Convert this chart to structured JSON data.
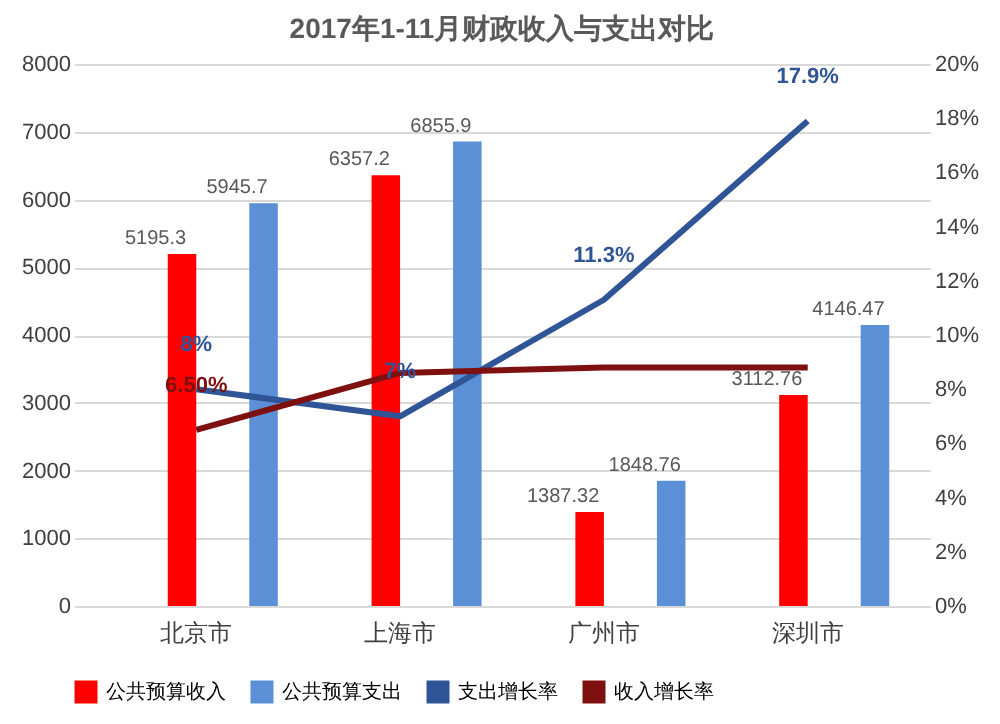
{
  "chart_data": {
    "type": "bar",
    "title": "2017年1-11月财政收入与支出对比",
    "categories": [
      "北京市",
      "上海市",
      "广州市",
      "深圳市"
    ],
    "series": [
      {
        "name": "公共预算收入",
        "color": "#ff0000",
        "values": [
          5195.3,
          6357.2,
          1387.32,
          3112.76
        ],
        "value_labels": [
          "5195.3",
          "6357.2",
          "1387.32",
          "3112.76"
        ]
      },
      {
        "name": "公共预算支出",
        "color": "#5b8fd6",
        "values": [
          5945.7,
          6855.9,
          1848.76,
          4146.47
        ],
        "value_labels": [
          "5945.7",
          "6855.9",
          "1848.76",
          "4146.47"
        ]
      },
      {
        "name": "支出增长率",
        "type": "line",
        "axis": "y2",
        "color": "#2f5597",
        "values": [
          8,
          7,
          11.3,
          17.9
        ],
        "value_labels": [
          "8%",
          "7%",
          "11.3%",
          "17.9%"
        ]
      },
      {
        "name": "收入增长率",
        "type": "line",
        "axis": "y2",
        "color": "#7f1010",
        "values": [
          6.5,
          8.6,
          8.8,
          8.8
        ],
        "value_labels": [
          "6.50%",
          null,
          null,
          null
        ]
      }
    ],
    "ylim": [
      0,
      8000
    ],
    "yticks": [
      0,
      1000,
      2000,
      3000,
      4000,
      5000,
      6000,
      7000,
      8000
    ],
    "y2lim": [
      0,
      20
    ],
    "y2ticks": [
      {
        "value": 0,
        "label": "0%"
      },
      {
        "value": 2,
        "label": "2%"
      },
      {
        "value": 4,
        "label": "4%"
      },
      {
        "value": 6,
        "label": "6%"
      },
      {
        "value": 8,
        "label": "8%"
      },
      {
        "value": 10,
        "label": "10%"
      },
      {
        "value": 12,
        "label": "12%"
      },
      {
        "value": 14,
        "label": "14%"
      },
      {
        "value": 16,
        "label": "16%"
      },
      {
        "value": 18,
        "label": "18%"
      },
      {
        "value": 20,
        "label": "20%"
      }
    ],
    "grid": "y",
    "legend": "bottom"
  }
}
